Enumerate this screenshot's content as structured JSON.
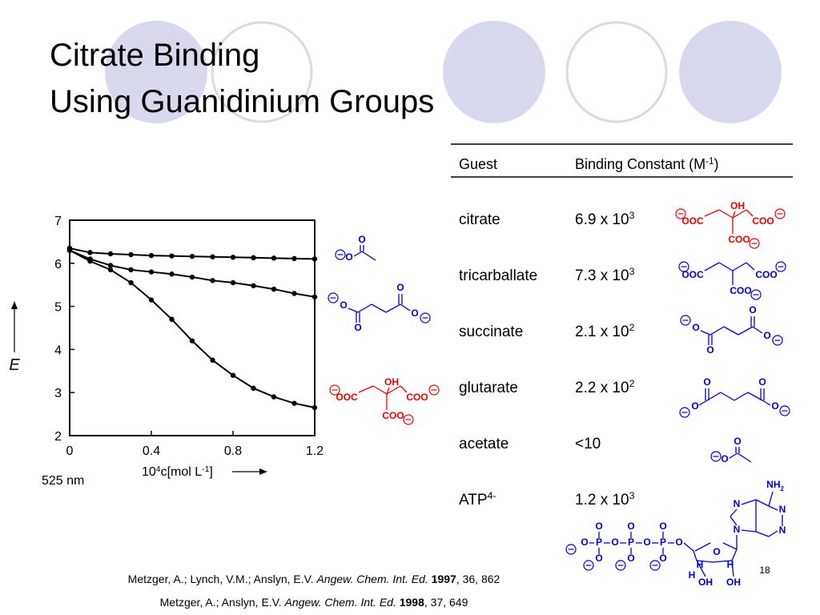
{
  "header": {
    "title_lines": [
      "Citrate Binding",
      "Using Guanidinium Groups"
    ],
    "slide_number": "18"
  },
  "table": {
    "columns": [
      "Guest",
      [
        "Binding Constant (M",
        "-1",
        ")"
      ]
    ],
    "rows": [
      [
        "citrate",
        [
          "6.9 x 10",
          "3"
        ]
      ],
      [
        "tricarballate",
        [
          "7.3 x 10",
          "3"
        ]
      ],
      [
        "succinate",
        [
          "2.1 x 10",
          "2"
        ]
      ],
      [
        "glutarate",
        [
          "2.2 x 10",
          "2"
        ]
      ],
      [
        "acetate",
        "<10"
      ],
      [
        [
          "ATP",
          "4-"
        ],
        [
          "1.2 x 10",
          "3"
        ]
      ]
    ]
  },
  "chart_data": {
    "type": "line",
    "ylabel": "E",
    "xlabel": [
      "10",
      "4",
      "c[mol L",
      "-1",
      "]"
    ],
    "annotation": "525 nm",
    "x": [
      0,
      0.1,
      0.2,
      0.3,
      0.4,
      0.5,
      0.6,
      0.7,
      0.8,
      0.9,
      1.0,
      1.1,
      1.2
    ],
    "series": [
      {
        "color": "#000000",
        "values": [
          6.35,
          6.25,
          6.22,
          6.2,
          6.18,
          6.17,
          6.16,
          6.15,
          6.14,
          6.13,
          6.12,
          6.11,
          6.1
        ]
      },
      {
        "color": "#000000",
        "values": [
          6.3,
          6.1,
          5.95,
          5.85,
          5.8,
          5.75,
          5.68,
          5.6,
          5.55,
          5.48,
          5.4,
          5.3,
          5.22
        ]
      },
      {
        "color": "#000000",
        "values": [
          6.3,
          6.05,
          5.85,
          5.55,
          5.15,
          4.7,
          4.2,
          3.75,
          3.4,
          3.1,
          2.9,
          2.75,
          2.65
        ]
      }
    ],
    "xlim": [
      0,
      1.2
    ],
    "ylim": [
      2,
      7
    ],
    "xticks": [
      0,
      0.4,
      0.8,
      1.2
    ],
    "yticks": [
      2,
      3,
      4,
      5,
      6,
      7
    ]
  },
  "structures": {
    "plot": [
      {
        "color": "#0000cc",
        "atoms": [
          "O",
          "O"
        ]
      },
      {
        "color": "#0000cc",
        "atoms": [
          "O",
          "O",
          "O",
          "O"
        ]
      },
      {
        "color": "#ee0000",
        "atoms": [
          "OOC",
          "OH",
          "COO",
          "COO"
        ]
      }
    ],
    "table": [
      {
        "color": "#ee0000",
        "atoms": [
          "OOC",
          "OH",
          "COO",
          "COO"
        ]
      },
      {
        "color": "#0000cc",
        "atoms": [
          "OOC",
          "COO",
          "COO"
        ]
      },
      {
        "color": "#0000cc",
        "atoms": [
          "O",
          "O",
          "O",
          "O"
        ]
      },
      {
        "color": "#0000cc",
        "atoms": [
          "O",
          "O",
          "O",
          "O"
        ]
      },
      {
        "color": "#0000cc",
        "atoms": [
          "O",
          "O"
        ]
      },
      {
        "color": "#0000cc",
        "atoms": [
          "O",
          "P",
          "O",
          "P",
          "O",
          "P",
          "O",
          "O",
          "O",
          "O",
          "O",
          "O",
          "O",
          "O",
          "H",
          "H",
          "H",
          "OH",
          "OH",
          "N",
          "N",
          "N",
          "N",
          [
            "NH",
            "2"
          ]
        ]
      }
    ]
  },
  "references": [
    {
      "authors": "Metzger, A.; Lynch, V.M.; Anslyn, E.V. ",
      "journal": "Angew. Chem. Int. Ed.",
      "year": " 1997",
      "rest": ", 36, 862"
    },
    {
      "authors": "Metzger, A.; Anslyn, E.V. ",
      "journal": "Angew. Chem. Int. Ed.",
      "year": " 1998",
      "rest": ", 37, 649"
    }
  ]
}
